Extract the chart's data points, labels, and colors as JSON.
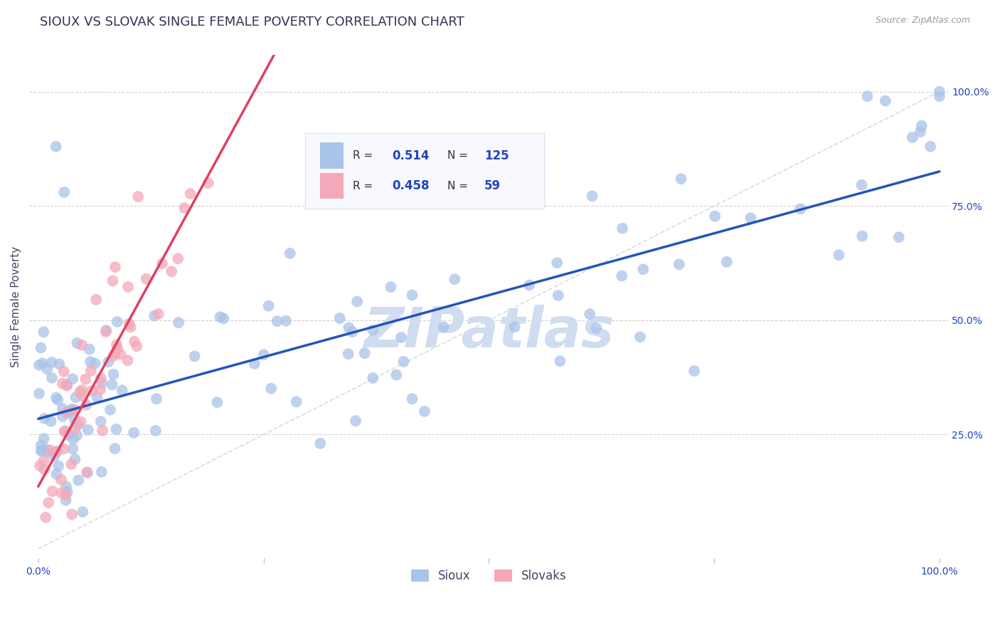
{
  "title": "SIOUX VS SLOVAK SINGLE FEMALE POVERTY CORRELATION CHART",
  "source": "Source: ZipAtlas.com",
  "ylabel": "Single Female Poverty",
  "sioux_R": 0.514,
  "sioux_N": 125,
  "slovak_R": 0.458,
  "slovak_N": 59,
  "blue_color": "#a8c4e8",
  "pink_color": "#f4a8b8",
  "blue_line_color": "#2255bb",
  "pink_line_color": "#e04060",
  "ref_line_color": "#cccccc",
  "watermark": "ZIPatlas",
  "watermark_color": "#d0dcf0",
  "background_color": "#ffffff",
  "grid_color": "#cccccc",
  "title_color": "#333355",
  "axis_label_color": "#444466",
  "tick_label_color": "#2244bb",
  "legend_box_color": "#f8f8ff",
  "legend_border_color": "#ddddee"
}
